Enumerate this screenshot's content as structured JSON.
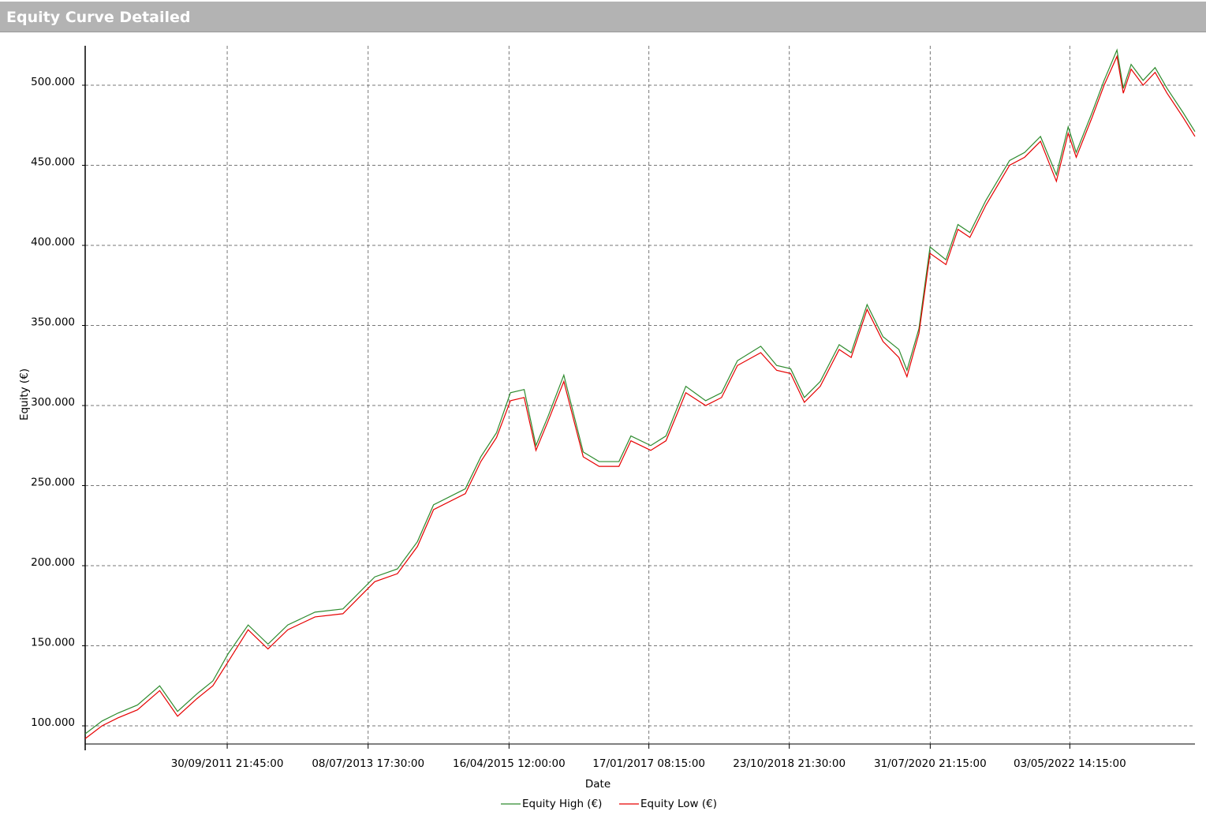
{
  "chart_data": {
    "type": "line",
    "title": "Equity Curve Detailed",
    "x_label": "Date",
    "y_label": "Equity (€)",
    "x": [
      "2009-12-18",
      "2010-03-05",
      "2010-05-18",
      "2010-08-15",
      "2010-11-25",
      "2011-02-15",
      "2011-05-15",
      "2011-07-27",
      "2011-10-05",
      "2012-01-05",
      "2012-04-05",
      "2012-07-05",
      "2012-11-07",
      "2013-03-15",
      "2013-05-27",
      "2013-08-08",
      "2013-11-20",
      "2014-02-20",
      "2014-05-05",
      "2014-09-28",
      "2014-12-08",
      "2015-02-18",
      "2015-04-23",
      "2015-06-25",
      "2015-08-18",
      "2015-10-12",
      "2015-12-24",
      "2016-03-22",
      "2016-06-03",
      "2016-09-02",
      "2016-10-27",
      "2017-01-26",
      "2017-04-06",
      "2017-07-06",
      "2017-10-05",
      "2017-12-17",
      "2018-02-28",
      "2018-06-15",
      "2018-08-27",
      "2018-10-30",
      "2019-01-01",
      "2019-03-15",
      "2019-06-10",
      "2019-08-04",
      "2019-10-16",
      "2019-12-28",
      "2020-03-10",
      "2020-04-16",
      "2020-06-10",
      "2020-07-31",
      "2020-10-12",
      "2020-12-06",
      "2021-01-30",
      "2021-04-13",
      "2021-07-31",
      "2021-10-08",
      "2021-12-20",
      "2022-03-03",
      "2022-04-26",
      "2022-06-02",
      "2022-08-14",
      "2022-10-08",
      "2022-12-06",
      "2023-01-04",
      "2023-02-09",
      "2023-04-05",
      "2023-05-30",
      "2023-07-24",
      "2023-10-05",
      "2023-11-29"
    ],
    "series": [
      {
        "name": "Equity High (€)",
        "color": "#2e8b2e",
        "values": [
          95000,
          103000,
          108000,
          113000,
          125000,
          109000,
          120000,
          128000,
          145000,
          163000,
          151000,
          163000,
          171000,
          173000,
          183000,
          193000,
          198000,
          215000,
          238000,
          248000,
          268000,
          283000,
          308000,
          310000,
          275000,
          293000,
          319000,
          271000,
          265000,
          265000,
          281000,
          275000,
          281000,
          312000,
          303000,
          308000,
          328000,
          337000,
          325000,
          323000,
          305000,
          315000,
          338000,
          333000,
          363000,
          343000,
          335000,
          322000,
          348000,
          399000,
          391000,
          413000,
          408000,
          428000,
          453000,
          458000,
          468000,
          444000,
          474000,
          458000,
          483000,
          503000,
          522000,
          498000,
          513000,
          503000,
          511000,
          498000,
          483000,
          471000
        ]
      },
      {
        "name": "Equity Low (€)",
        "color": "#e60000",
        "values": [
          92000,
          100000,
          105000,
          110000,
          122000,
          106000,
          117000,
          125000,
          140000,
          160000,
          148000,
          160000,
          168000,
          170000,
          180000,
          190000,
          195000,
          212000,
          235000,
          245000,
          265000,
          280000,
          303000,
          305000,
          272000,
          290000,
          315000,
          268000,
          262000,
          262000,
          278000,
          272000,
          278000,
          308000,
          300000,
          305000,
          325000,
          333000,
          322000,
          320000,
          302000,
          312000,
          335000,
          330000,
          360000,
          340000,
          330000,
          318000,
          345000,
          395000,
          388000,
          410000,
          405000,
          425000,
          450000,
          455000,
          465000,
          440000,
          470000,
          455000,
          480000,
          500000,
          518000,
          495000,
          510000,
          500000,
          508000,
          495000,
          480000,
          468000
        ]
      }
    ],
    "xlim": [
      "2009-12-18T00:00:00",
      "2023-11-29T00:00:00"
    ],
    "xticks": [
      {
        "value": "2011-09-30T21:45:00",
        "label": "30/09/2011 21:45:00"
      },
      {
        "value": "2013-07-08T17:30:00",
        "label": "08/07/2013 17:30:00"
      },
      {
        "value": "2015-04-16T12:00:00",
        "label": "16/04/2015 12:00:00"
      },
      {
        "value": "2017-01-17T08:15:00",
        "label": "17/01/2017 08:15:00"
      },
      {
        "value": "2018-10-23T21:30:00",
        "label": "23/10/2018 21:30:00"
      },
      {
        "value": "2020-07-31T21:15:00",
        "label": "31/07/2020 21:15:00"
      },
      {
        "value": "2022-05-03T14:15:00",
        "label": "03/05/2022 14:15:00"
      }
    ],
    "ylim": [
      88670,
      524630
    ],
    "yticks": [
      {
        "value": 100000,
        "label": "100.000"
      },
      {
        "value": 150000,
        "label": "150.000"
      },
      {
        "value": 200000,
        "label": "200.000"
      },
      {
        "value": 250000,
        "label": "250.000"
      },
      {
        "value": 300000,
        "label": "300.000"
      },
      {
        "value": 350000,
        "label": "350.000"
      },
      {
        "value": 400000,
        "label": "400.000"
      },
      {
        "value": 450000,
        "label": "450.000"
      },
      {
        "value": 500000,
        "label": "500.000"
      }
    ],
    "grid": true
  }
}
